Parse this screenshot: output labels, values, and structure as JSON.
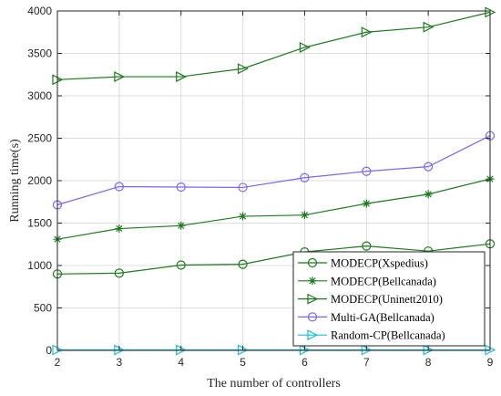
{
  "chart_data": {
    "type": "line",
    "title": "",
    "xlabel": "The number of controllers",
    "ylabel": "Running time(s)",
    "x": [
      2,
      3,
      4,
      5,
      6,
      7,
      8,
      9
    ],
    "xlim": [
      2,
      9
    ],
    "ylim": [
      0,
      4000
    ],
    "xticks": [
      "2",
      "3",
      "4",
      "5",
      "6",
      "7",
      "8",
      "9"
    ],
    "yticks": [
      "0",
      "500",
      "1000",
      "1500",
      "2000",
      "2500",
      "3000",
      "3500",
      "4000"
    ],
    "grid": true,
    "legend_position": "bottom-right",
    "series": [
      {
        "name": "MODECP(Xspedius)",
        "marker": "circle",
        "color": "#1e7a1e",
        "values": [
          900,
          910,
          1005,
          1015,
          1160,
          1230,
          1170,
          1255
        ]
      },
      {
        "name": "MODECP(Bellcanada)",
        "marker": "star",
        "color": "#1e7a1e",
        "values": [
          1310,
          1435,
          1470,
          1580,
          1595,
          1730,
          1840,
          2020
        ]
      },
      {
        "name": "MODECP(Uninett2010)",
        "marker": "triangle-right",
        "color": "#1e7a1e",
        "values": [
          3190,
          3225,
          3225,
          3320,
          3570,
          3750,
          3810,
          3985
        ]
      },
      {
        "name": "Multi-GA(Bellcanada)",
        "marker": "circle",
        "color": "#7b68ee",
        "values": [
          1715,
          1930,
          1925,
          1920,
          2035,
          2110,
          2165,
          2530
        ]
      },
      {
        "name": "Random-CP(Bellcanada)",
        "marker": "triangle-right",
        "color": "#1ebcd6",
        "values": [
          5,
          5,
          5,
          5,
          5,
          5,
          5,
          5
        ]
      }
    ]
  }
}
